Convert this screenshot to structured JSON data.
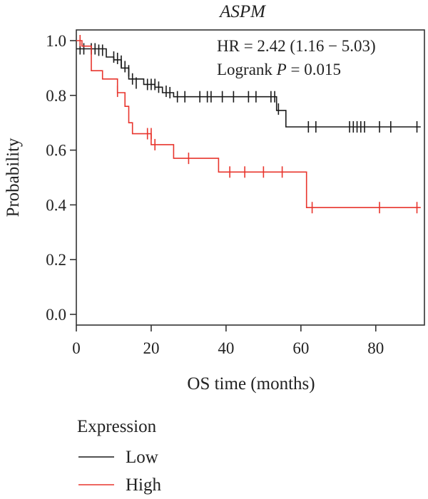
{
  "chart_data": {
    "type": "line",
    "title": "ASPM",
    "xlabel": "OS time (months)",
    "ylabel": "Probability",
    "xlim": [
      0,
      93
    ],
    "ylim": [
      0,
      1.0
    ],
    "x_ticks": [
      "0",
      "20",
      "40",
      "60",
      "80"
    ],
    "x_tick_values": [
      0,
      20,
      40,
      60,
      80
    ],
    "y_ticks": [
      "0.0",
      "0.2",
      "0.4",
      "0.6",
      "0.8",
      "1.0"
    ],
    "y_tick_values": [
      0,
      0.2,
      0.4,
      0.6,
      0.8,
      1.0
    ],
    "annotations": {
      "hr": "HR = 2.42 (1.16 − 5.03)",
      "logrank_prefix": "Logrank ",
      "logrank_p": "P",
      "logrank_value": " = 0.015"
    },
    "legend": {
      "title": "Expression",
      "position": "bottom-left",
      "entries": [
        "Low",
        "High"
      ]
    },
    "series": [
      {
        "name": "Low",
        "color": "#1a1a1a",
        "steps": [
          [
            0,
            0.97
          ],
          [
            8,
            0.94
          ],
          [
            10,
            0.93
          ],
          [
            12,
            0.9
          ],
          [
            14,
            0.86
          ],
          [
            18,
            0.84
          ],
          [
            21,
            0.83
          ],
          [
            23,
            0.81
          ],
          [
            26,
            0.795
          ],
          [
            53.5,
            0.745
          ],
          [
            56,
            0.685
          ],
          [
            92,
            0.685
          ]
        ],
        "censored": [
          [
            1,
            0.97
          ],
          [
            2,
            0.97
          ],
          [
            4,
            0.97
          ],
          [
            5,
            0.97
          ],
          [
            6,
            0.965
          ],
          [
            7,
            0.965
          ],
          [
            10,
            0.94
          ],
          [
            11,
            0.935
          ],
          [
            12,
            0.925
          ],
          [
            13,
            0.905
          ],
          [
            14,
            0.89
          ],
          [
            15,
            0.86
          ],
          [
            16,
            0.845
          ],
          [
            19,
            0.84
          ],
          [
            20,
            0.84
          ],
          [
            21,
            0.84
          ],
          [
            22,
            0.83
          ],
          [
            24,
            0.815
          ],
          [
            25,
            0.81
          ],
          [
            27,
            0.795
          ],
          [
            29,
            0.795
          ],
          [
            33,
            0.795
          ],
          [
            35,
            0.795
          ],
          [
            36,
            0.795
          ],
          [
            39,
            0.795
          ],
          [
            42,
            0.795
          ],
          [
            46,
            0.795
          ],
          [
            48,
            0.795
          ],
          [
            52,
            0.795
          ],
          [
            53,
            0.795
          ],
          [
            54,
            0.75
          ],
          [
            62,
            0.685
          ],
          [
            64,
            0.685
          ],
          [
            73,
            0.685
          ],
          [
            74,
            0.685
          ],
          [
            75,
            0.685
          ],
          [
            76,
            0.685
          ],
          [
            77,
            0.685
          ],
          [
            81,
            0.685
          ],
          [
            84,
            0.685
          ],
          [
            91,
            0.685
          ]
        ]
      },
      {
        "name": "High",
        "color": "#e8352d",
        "steps": [
          [
            0,
            1.0
          ],
          [
            1.5,
            0.98
          ],
          [
            4,
            0.89
          ],
          [
            7,
            0.86
          ],
          [
            11,
            0.81
          ],
          [
            13,
            0.76
          ],
          [
            14,
            0.7
          ],
          [
            15,
            0.66
          ],
          [
            20,
            0.62
          ],
          [
            26,
            0.57
          ],
          [
            38,
            0.52
          ],
          [
            61.5,
            0.39
          ],
          [
            92,
            0.39
          ]
        ],
        "censored": [
          [
            1,
            1.0
          ],
          [
            11,
            0.815
          ],
          [
            19,
            0.66
          ],
          [
            20,
            0.66
          ],
          [
            21,
            0.62
          ],
          [
            30,
            0.57
          ],
          [
            41,
            0.52
          ],
          [
            45,
            0.52
          ],
          [
            50,
            0.52
          ],
          [
            55,
            0.52
          ],
          [
            63,
            0.39
          ],
          [
            81,
            0.39
          ],
          [
            91,
            0.39
          ]
        ]
      }
    ]
  }
}
